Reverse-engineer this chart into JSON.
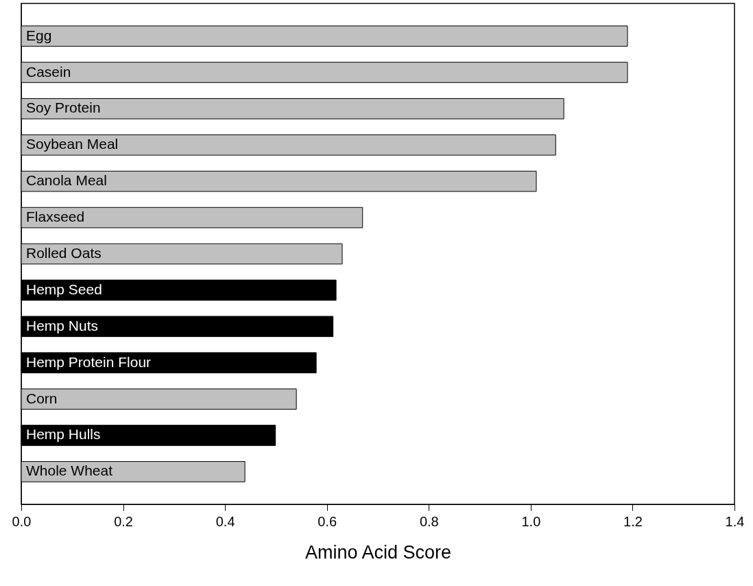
{
  "chart_data": {
    "type": "bar",
    "orientation": "horizontal",
    "xlabel": "Amino Acid Score",
    "categories": [
      "Egg",
      "Casein",
      "Soy Protein",
      "Soybean Meal",
      "Canola Meal",
      "Flaxseed",
      "Rolled Oats",
      "Hemp Seed",
      "Hemp Nuts",
      "Hemp Protein Flour",
      "Corn",
      "Hemp Hulls",
      "Whole Wheat"
    ],
    "values": [
      1.19,
      1.19,
      1.065,
      1.049,
      1.011,
      0.67,
      0.63,
      0.618,
      0.612,
      0.579,
      0.54,
      0.499,
      0.439
    ],
    "colors": [
      "#c0c0c0",
      "#c0c0c0",
      "#c0c0c0",
      "#c0c0c0",
      "#c0c0c0",
      "#c0c0c0",
      "#c0c0c0",
      "#000000",
      "#000000",
      "#000000",
      "#c0c0c0",
      "#000000",
      "#c0c0c0"
    ],
    "xlim": [
      0,
      1.4
    ],
    "xticks": [
      {
        "value": 0,
        "label": "0.0"
      },
      0.2,
      0.4,
      0.6,
      0.8,
      {
        "value": 1,
        "label": "1.0"
      },
      1.2,
      1.4
    ],
    "grid": false
  }
}
